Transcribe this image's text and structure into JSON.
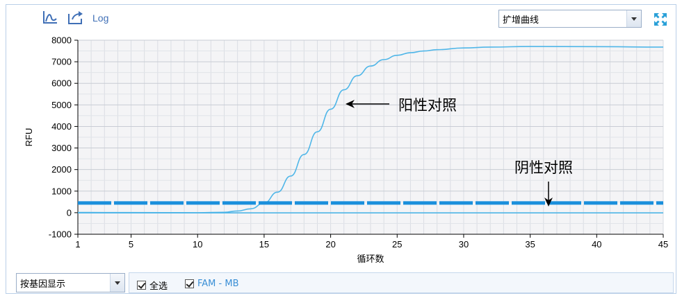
{
  "toolbar": {
    "axis_icon": "axis-icon",
    "export_icon": "export-icon",
    "log_label": "Log",
    "view_select": {
      "value": "扩增曲线"
    },
    "expand_icon": "expand-icon"
  },
  "footer": {
    "group_select": {
      "value": "按基因显示"
    },
    "select_all": {
      "label": "全选",
      "checked": true
    },
    "channel": {
      "label": "FAM - MB",
      "checked": true,
      "color": "#3a8fd6"
    }
  },
  "annotations": {
    "positive": "阳性对照",
    "negative": "阴性对照"
  },
  "chart_data": {
    "type": "line",
    "xlabel": "循环数",
    "ylabel": "RFU",
    "xlim": [
      1,
      45
    ],
    "ylim": [
      -1000,
      8000
    ],
    "x_ticks": [
      1,
      5,
      10,
      15,
      20,
      25,
      30,
      35,
      40,
      45
    ],
    "y_ticks": [
      -1000,
      0,
      1000,
      2000,
      3000,
      4000,
      5000,
      6000,
      7000,
      8000
    ],
    "grid": true,
    "series": [
      {
        "color": "#4fb6e8",
        "x": [
          1,
          5,
          10,
          12,
          13,
          14,
          15,
          16,
          17,
          18,
          19,
          20,
          21,
          22,
          23,
          24,
          25,
          26,
          27,
          28,
          30,
          32,
          35,
          40,
          45
        ],
        "y": [
          10,
          5,
          0,
          20,
          80,
          180,
          450,
          950,
          1700,
          2700,
          3750,
          4800,
          5700,
          6350,
          6800,
          7100,
          7300,
          7420,
          7500,
          7560,
          7640,
          7680,
          7710,
          7700,
          7680
        ]
      },
      {
        "color": "#4fb6e8",
        "x": [
          1,
          45
        ],
        "y": [
          -10,
          -10
        ]
      },
      {
        "color": "#1a8fdc",
        "style": "dashed",
        "x": [
          1,
          45
        ],
        "y": [
          450,
          450
        ]
      }
    ]
  }
}
